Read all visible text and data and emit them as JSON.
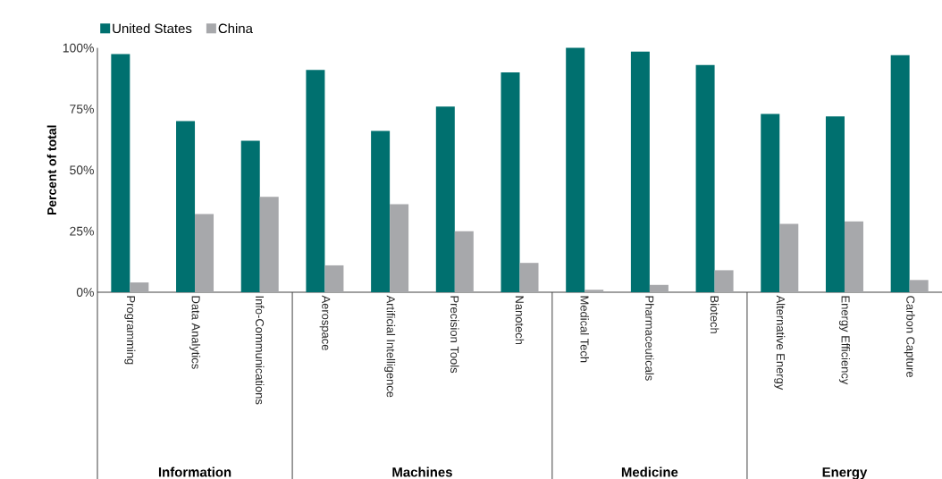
{
  "chart_data": {
    "type": "bar",
    "ylabel": "Percent of total",
    "categories": [
      "Programming",
      "Data Analytics",
      "Info-Communications",
      "Aerospace",
      "Artificial Intelligence",
      "Precision Tools",
      "Nanotech",
      "Medical Tech",
      "Pharmaceuticals",
      "Biotech",
      "Alternative Energy",
      "Energy Efficiency",
      "Carbon Capture"
    ],
    "series": [
      {
        "name": "United States",
        "color": "#00706f",
        "values": [
          97.5,
          70,
          62,
          91,
          66,
          76,
          90,
          100,
          98.5,
          93,
          73,
          72,
          97
        ]
      },
      {
        "name": "China",
        "color": "#a7a8ab",
        "values": [
          4,
          32,
          39,
          11,
          36,
          25,
          12,
          1,
          3,
          9,
          28,
          29,
          5
        ]
      }
    ],
    "ylim": [
      0,
      100
    ],
    "yticks": [
      {
        "value": 0,
        "label": "0%"
      },
      {
        "value": 25,
        "label": "25%"
      },
      {
        "value": 50,
        "label": "50%"
      },
      {
        "value": 75,
        "label": "75%"
      },
      {
        "value": 100,
        "label": "100%"
      }
    ],
    "annotations": [
      "Information",
      "Machines",
      "Medicine",
      "Energy"
    ],
    "legend": "top left",
    "grid": false
  }
}
